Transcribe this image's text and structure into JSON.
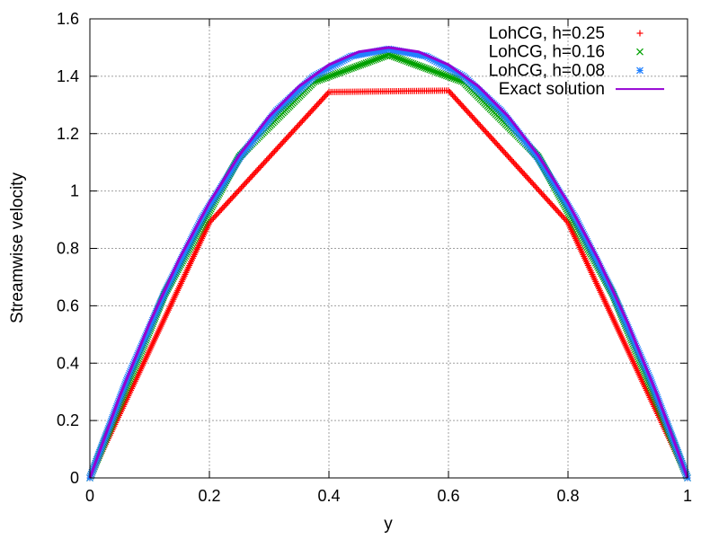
{
  "chart_data": {
    "type": "line",
    "title": "",
    "xlabel": "y",
    "ylabel": "Streamwise velocity",
    "xlim": [
      0,
      1
    ],
    "ylim": [
      0,
      1.6
    ],
    "xticks": [
      "0",
      "0.2",
      "0.4",
      "0.6",
      "0.8",
      "1"
    ],
    "yticks": [
      "0",
      "0.2",
      "0.4",
      "0.6",
      "0.8",
      "1",
      "1.2",
      "1.4",
      "1.6"
    ],
    "grid": true,
    "legend_position": "top-right",
    "series": [
      {
        "name": "LohCG, h=0.25",
        "marker": "plus",
        "color": "#ff0000",
        "x": [
          0,
          0.2,
          0.4,
          0.6,
          0.8,
          1
        ],
        "y": [
          0,
          0.89,
          1.345,
          1.35,
          0.89,
          0
        ]
      },
      {
        "name": "LohCG, h=0.16",
        "marker": "cross",
        "color": "#00a000",
        "x": [
          0,
          0.125,
          0.25,
          0.375,
          0.5,
          0.625,
          0.75,
          0.875,
          1
        ],
        "y": [
          0,
          0.64,
          1.12,
          1.38,
          1.475,
          1.38,
          1.12,
          0.64,
          0
        ]
      },
      {
        "name": "LohCG, h=0.08",
        "marker": "star",
        "color": "#2080ff",
        "x": [
          0,
          0.0625,
          0.125,
          0.1875,
          0.25,
          0.3125,
          0.375,
          0.4375,
          0.5,
          0.5625,
          0.625,
          0.6875,
          0.75,
          0.8125,
          0.875,
          0.9375,
          1
        ],
        "y": [
          0,
          0.345,
          0.645,
          0.905,
          1.115,
          1.28,
          1.4,
          1.47,
          1.495,
          1.47,
          1.4,
          1.28,
          1.115,
          0.905,
          0.645,
          0.345,
          0
        ]
      },
      {
        "name": "Exact solution",
        "marker": "line",
        "color": "#9400d3",
        "x": [
          0,
          0.05,
          0.1,
          0.15,
          0.2,
          0.25,
          0.3,
          0.35,
          0.4,
          0.45,
          0.5,
          0.55,
          0.6,
          0.65,
          0.7,
          0.75,
          0.8,
          0.85,
          0.9,
          0.95,
          1
        ],
        "y": [
          0,
          0.285,
          0.54,
          0.765,
          0.96,
          1.125,
          1.26,
          1.365,
          1.44,
          1.485,
          1.5,
          1.485,
          1.44,
          1.365,
          1.26,
          1.125,
          0.96,
          0.765,
          0.54,
          0.285,
          0
        ]
      }
    ]
  }
}
